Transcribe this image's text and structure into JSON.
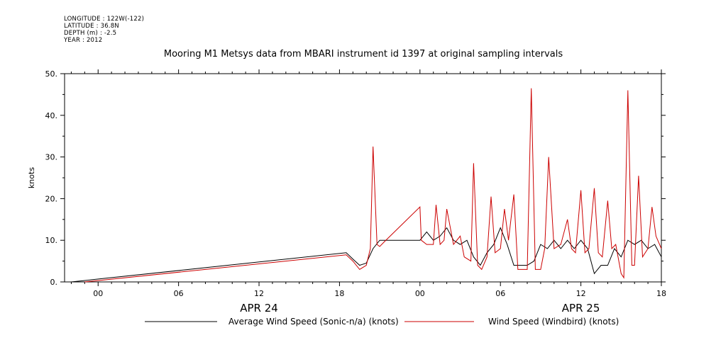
{
  "meta": {
    "longitude": "LONGITUDE : 122W(-122)",
    "latitude": "LATITUDE : 36.8N",
    "depth": "DEPTH (m) : -2.5",
    "year": "YEAR : 2012"
  },
  "chart_data": {
    "type": "line",
    "title": "Mooring M1 Metsys data from MBARI instrument id 1397 at original sampling intervals",
    "ylabel": "knots",
    "xlabel": "",
    "ylim": [
      0,
      50
    ],
    "xlim_hours": [
      -2.5,
      42
    ],
    "y_ticks": [
      0,
      10,
      20,
      30,
      40,
      50
    ],
    "y_tick_labels": [
      "0.",
      "10.",
      "20.",
      "30.",
      "40.",
      "50."
    ],
    "x_ticks": [
      {
        "hour": 0,
        "label": "00"
      },
      {
        "hour": 6,
        "label": "06"
      },
      {
        "hour": 12,
        "label": "12"
      },
      {
        "hour": 18,
        "label": "18"
      },
      {
        "hour": 24,
        "label": "00"
      },
      {
        "hour": 30,
        "label": "06"
      },
      {
        "hour": 36,
        "label": "12"
      },
      {
        "hour": 42,
        "label": "18"
      }
    ],
    "date_labels": [
      {
        "hour": 12,
        "label": "APR 24"
      },
      {
        "hour": 36,
        "label": "APR 25"
      }
    ],
    "grid": false,
    "legend_position": "bottom",
    "series": [
      {
        "name": "Average Wind Speed (Sonic-n/a) (knots)",
        "color": "#000000",
        "points": [
          [
            -2,
            0
          ],
          [
            18.5,
            7
          ],
          [
            19.0,
            5.5
          ],
          [
            19.5,
            4
          ],
          [
            20.0,
            4.5
          ],
          [
            20.5,
            8
          ],
          [
            21,
            10
          ],
          [
            24,
            10
          ],
          [
            24.5,
            12
          ],
          [
            25,
            10
          ],
          [
            25.5,
            11
          ],
          [
            26,
            13
          ],
          [
            26.5,
            10
          ],
          [
            27,
            9
          ],
          [
            27.5,
            10
          ],
          [
            28,
            6
          ],
          [
            28.5,
            4
          ],
          [
            29,
            7
          ],
          [
            29.5,
            9
          ],
          [
            30,
            13
          ],
          [
            30.5,
            9
          ],
          [
            31,
            4
          ],
          [
            31.5,
            4
          ],
          [
            32,
            4
          ],
          [
            32.5,
            5
          ],
          [
            33,
            9
          ],
          [
            33.5,
            8
          ],
          [
            34,
            10
          ],
          [
            34.5,
            8
          ],
          [
            35,
            10
          ],
          [
            35.5,
            8
          ],
          [
            36,
            10
          ],
          [
            36.5,
            8
          ],
          [
            37,
            2
          ],
          [
            37.5,
            4
          ],
          [
            38,
            4
          ],
          [
            38.5,
            8
          ],
          [
            39,
            6
          ],
          [
            39.5,
            10
          ],
          [
            40,
            9
          ],
          [
            40.5,
            10
          ],
          [
            41,
            8
          ],
          [
            41.5,
            9
          ],
          [
            42,
            6
          ],
          [
            42,
            4
          ]
        ]
      },
      {
        "name": "Wind Speed (Windbird) (knots)",
        "color": "#cc0000",
        "points": [
          [
            -1,
            0
          ],
          [
            18.5,
            6.5
          ],
          [
            19,
            5
          ],
          [
            19.5,
            3
          ],
          [
            20.0,
            4
          ],
          [
            20.3,
            8
          ],
          [
            20.5,
            32.5
          ],
          [
            20.8,
            9
          ],
          [
            21,
            8.5
          ],
          [
            21.3,
            9.5
          ],
          [
            24,
            18
          ],
          [
            24.1,
            10
          ],
          [
            24.5,
            9
          ],
          [
            25,
            9
          ],
          [
            25.2,
            18.5
          ],
          [
            25.5,
            9
          ],
          [
            25.8,
            10
          ],
          [
            26,
            17.5
          ],
          [
            26.5,
            9
          ],
          [
            27,
            11
          ],
          [
            27.3,
            6
          ],
          [
            27.8,
            5
          ],
          [
            28,
            28.5
          ],
          [
            28.3,
            4
          ],
          [
            28.6,
            3
          ],
          [
            29,
            6
          ],
          [
            29.3,
            20.5
          ],
          [
            29.6,
            7
          ],
          [
            30,
            8
          ],
          [
            30.3,
            17.5
          ],
          [
            30.6,
            10
          ],
          [
            31,
            21
          ],
          [
            31.3,
            3
          ],
          [
            32,
            3
          ],
          [
            32.3,
            46.5
          ],
          [
            32.6,
            3
          ],
          [
            33,
            3
          ],
          [
            33.3,
            8
          ],
          [
            33.6,
            30
          ],
          [
            34,
            8
          ],
          [
            34.5,
            9
          ],
          [
            35,
            15
          ],
          [
            35.3,
            8
          ],
          [
            35.6,
            7
          ],
          [
            36,
            22
          ],
          [
            36.3,
            7
          ],
          [
            36.6,
            8
          ],
          [
            37,
            22.5
          ],
          [
            37.3,
            7
          ],
          [
            37.6,
            6
          ],
          [
            38,
            19.5
          ],
          [
            38.3,
            8
          ],
          [
            38.6,
            9
          ],
          [
            39,
            2
          ],
          [
            39.2,
            1
          ],
          [
            39.5,
            46
          ],
          [
            39.8,
            4
          ],
          [
            40,
            4
          ],
          [
            40.3,
            25.5
          ],
          [
            40.6,
            6
          ],
          [
            41,
            8
          ],
          [
            41.3,
            18
          ],
          [
            41.6,
            11
          ],
          [
            42,
            8
          ]
        ]
      }
    ]
  }
}
